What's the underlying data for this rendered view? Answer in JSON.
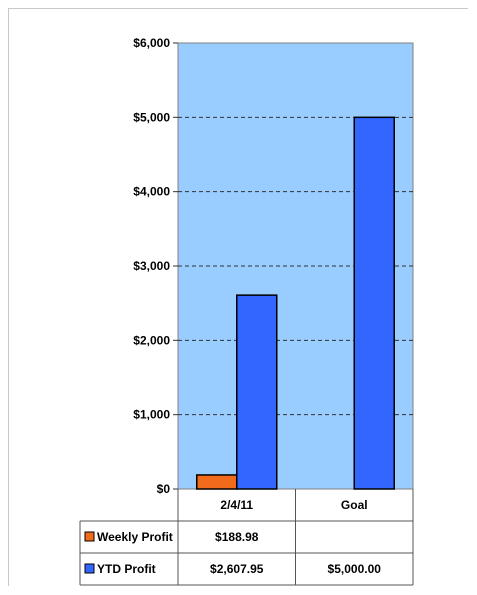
{
  "chart_data": {
    "type": "bar",
    "categories": [
      "2/4/11",
      "Goal"
    ],
    "series": [
      {
        "name": "Weekly Profit",
        "values": [
          188.98,
          null
        ],
        "color": "#f26b1d",
        "table": [
          "$188.98",
          ""
        ]
      },
      {
        "name": "YTD Profit",
        "values": [
          2607.95,
          5000.0
        ],
        "color": "#3366ff",
        "table": [
          "$2,607.95",
          "$5,000.00"
        ]
      }
    ],
    "ylim": [
      0,
      6000
    ],
    "yticks": [
      0,
      1000,
      2000,
      3000,
      4000,
      5000,
      6000
    ],
    "ytick_labels": [
      "$0",
      "$1,000",
      "$2,000",
      "$3,000",
      "$4,000",
      "$5,000",
      "$6,000"
    ],
    "grid": "dashed horizontal",
    "plot_background": "#99ccff",
    "legend": "data table below chart",
    "title": "",
    "xlabel": "",
    "ylabel": ""
  }
}
